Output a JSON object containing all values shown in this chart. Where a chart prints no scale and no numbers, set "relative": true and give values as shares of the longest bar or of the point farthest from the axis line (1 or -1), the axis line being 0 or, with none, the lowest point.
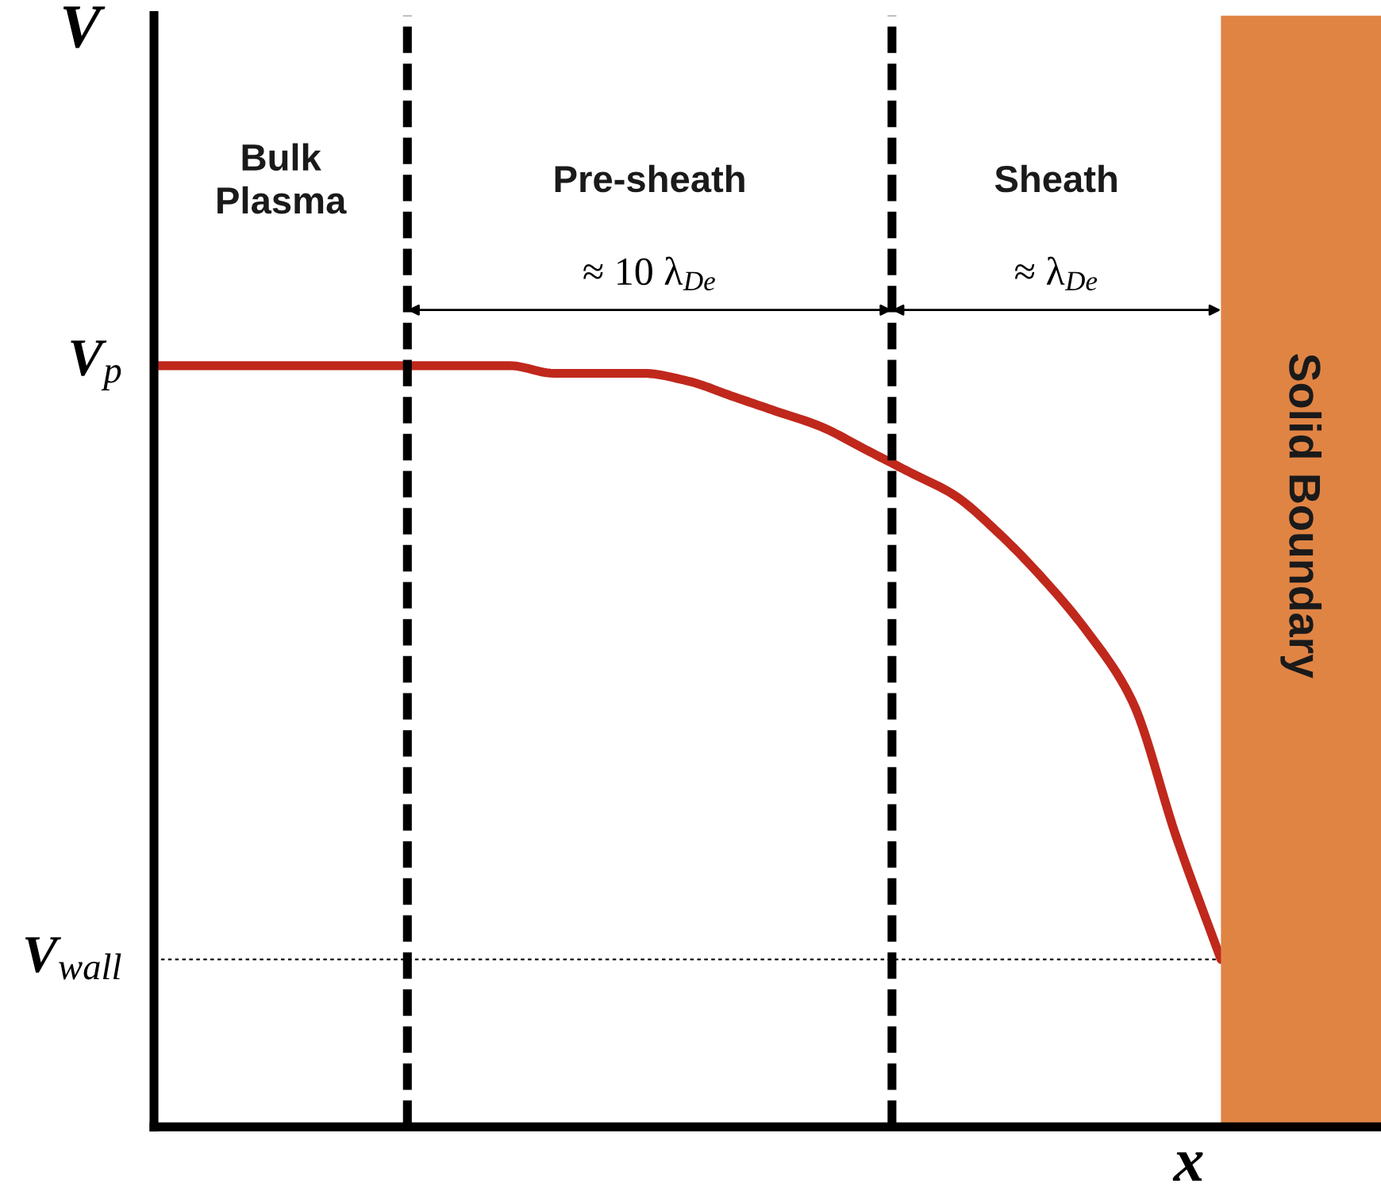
{
  "chart_data": {
    "type": "line",
    "relative": true,
    "xlabel": "x",
    "categories": [
      null,
      null,
      null,
      null,
      null,
      null,
      null,
      null,
      null,
      null,
      null,
      null,
      null,
      null,
      null,
      null,
      null,
      null,
      null,
      null,
      null,
      null,
      null,
      null,
      null
    ],
    "series": [
      {
        "color": "#c0281c",
        "values": [
          1,
          1,
          1,
          1,
          1,
          1,
          1,
          1,
          1,
          0.99,
          0.99,
          0.99,
          0.98,
          0.96,
          0.94,
          0.92,
          0.89,
          0.86,
          0.83,
          0.78,
          0.72,
          0.65,
          0.56,
          0.38,
          0.22
        ]
      }
    ],
    "ref_lines": [
      {
        "axis": "y",
        "value": 0.22,
        "label": "V$_{wall}$",
        "color": "#000000",
        "line_style": "dotted"
      }
    ],
    "annotations": [
      "V",
      "Bulk\nPlasma",
      "Pre-sheath",
      "≈ 10 λ$_{De}$",
      "Sheath",
      "≈ λ$_{De}$",
      "Solid Boundary",
      "V$_{p}$"
    ],
    "marker": "none",
    "line_style": "solid"
  }
}
